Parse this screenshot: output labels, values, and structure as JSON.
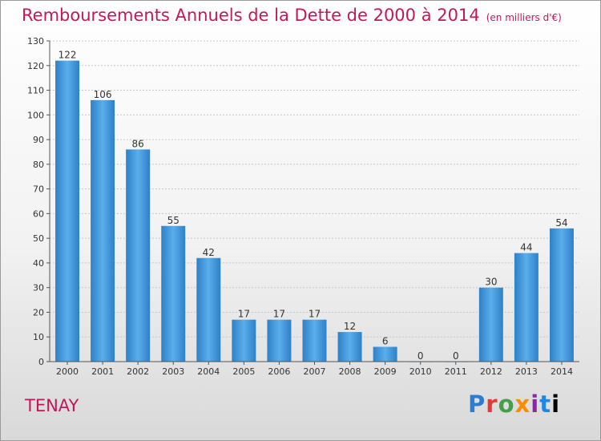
{
  "header": {
    "title": "Remboursements Annuels de la Dette de 2000 à 2014",
    "subtitle": "(en milliers d'€)"
  },
  "footer": {
    "commune": "TENAY",
    "logo_letters": [
      "P",
      "r",
      "o",
      "x",
      "i",
      "t",
      "i"
    ]
  },
  "chart_data": {
    "type": "bar",
    "categories": [
      "2000",
      "2001",
      "2002",
      "2003",
      "2004",
      "2005",
      "2006",
      "2007",
      "2008",
      "2009",
      "2010",
      "2011",
      "2012",
      "2013",
      "2014"
    ],
    "values": [
      122,
      106,
      86,
      55,
      42,
      17,
      17,
      17,
      12,
      6,
      0,
      0,
      30,
      44,
      54
    ],
    "ylim": [
      0,
      130
    ],
    "yticks": [
      0,
      10,
      20,
      30,
      40,
      50,
      60,
      70,
      80,
      90,
      100,
      110,
      120,
      130
    ],
    "grid": true,
    "bar_color": "#3a8fd6"
  }
}
